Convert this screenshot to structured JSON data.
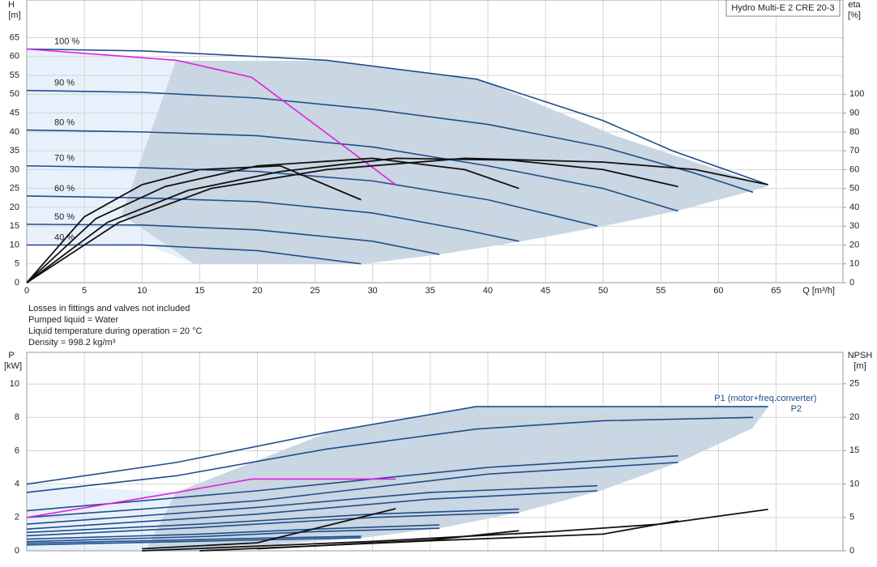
{
  "notes": [
    "Losses in fittings and valves not included",
    "Pumped liquid = Water",
    "Liquid temperature during operation = 20 °C",
    "Density = 998.2 kg/m³"
  ],
  "chart_data": [
    {
      "type": "line",
      "title": "Hydro Multi-E 2 CRE 20-3",
      "x_label": "Q [m³/h]",
      "y_label": "H",
      "y_unit": "[m]",
      "y2_label": "eta",
      "y2_unit": "[%]",
      "xlim": [
        0,
        70.8
      ],
      "ylim": [
        0,
        75
      ],
      "y2lim": [
        0,
        150
      ],
      "xticks": [
        0,
        5,
        10,
        15,
        20,
        25,
        30,
        35,
        40,
        45,
        50,
        55,
        60,
        65
      ],
      "yticks": [
        0,
        5,
        10,
        15,
        20,
        25,
        30,
        35,
        40,
        45,
        50,
        55,
        60,
        65
      ],
      "y2ticks": [
        0,
        10,
        20,
        30,
        40,
        50,
        60,
        70,
        80,
        90,
        100
      ],
      "grid": true,
      "series": [
        {
          "name": "100 %",
          "color": "#1f4e8c",
          "x": [
            0,
            10,
            20,
            26,
            39,
            50,
            56,
            64.3
          ],
          "values": [
            62,
            61.5,
            60,
            59,
            54,
            43,
            35,
            26
          ]
        },
        {
          "name": "90 %",
          "color": "#1f4e8c",
          "x": [
            0,
            10,
            20,
            30,
            40,
            50,
            58,
            63
          ],
          "values": [
            51,
            50.5,
            49,
            46,
            42,
            36,
            29,
            24
          ]
        },
        {
          "name": "80 %",
          "color": "#1f4e8c",
          "x": [
            0,
            10,
            20,
            30,
            40,
            50,
            56.5
          ],
          "values": [
            40.5,
            40,
            39,
            36,
            31,
            25,
            19
          ]
        },
        {
          "name": "70 %",
          "color": "#1f4e8c",
          "x": [
            0,
            10,
            20,
            30,
            40,
            49.5
          ],
          "values": [
            31,
            30.5,
            29.5,
            27,
            22,
            15
          ]
        },
        {
          "name": "60 %",
          "color": "#1f4e8c",
          "x": [
            0,
            10,
            20,
            30,
            38,
            42.7
          ],
          "values": [
            23,
            22.5,
            21.5,
            18.5,
            14,
            11
          ]
        },
        {
          "name": "50 %",
          "color": "#1f4e8c",
          "x": [
            0,
            10,
            20,
            30,
            35.8
          ],
          "values": [
            15.5,
            15.3,
            14,
            11,
            7.5
          ]
        },
        {
          "name": "40 %",
          "color": "#1f4e8c",
          "x": [
            0,
            10,
            20,
            29
          ],
          "values": [
            10,
            10,
            8.5,
            5
          ]
        },
        {
          "color": "#e020e0",
          "x": [
            0,
            13,
            19.5,
            32
          ],
          "values": [
            62,
            59,
            54.5,
            26
          ]
        },
        {
          "color": "#111111",
          "axis": "y2",
          "x": [
            0,
            8,
            16,
            26,
            38,
            50,
            58,
            64.3
          ],
          "values": [
            0,
            32,
            50,
            60,
            66,
            64,
            60,
            52
          ]
        },
        {
          "color": "#111111",
          "axis": "y2",
          "x": [
            0,
            7,
            14,
            22,
            32,
            42,
            50,
            56.5
          ],
          "values": [
            0,
            32,
            49,
            59,
            66,
            65,
            60,
            51
          ]
        },
        {
          "color": "#111111",
          "axis": "y2",
          "x": [
            0,
            6,
            12,
            20,
            30,
            38,
            42.7
          ],
          "values": [
            0,
            34,
            51,
            62,
            66,
            60,
            50
          ]
        },
        {
          "color": "#111111",
          "axis": "y2",
          "x": [
            0,
            5,
            10,
            15,
            22,
            29
          ],
          "values": [
            0,
            35,
            52,
            60,
            62,
            44
          ]
        }
      ]
    },
    {
      "type": "line",
      "y_label": "P",
      "y_unit": "[kW]",
      "y2_label": "NPSH",
      "y2_unit": "[m]",
      "xlim": [
        0,
        70.8
      ],
      "ylim": [
        0,
        11.9
      ],
      "y2lim": [
        0,
        29.7
      ],
      "yticks": [
        0,
        2,
        4,
        6,
        8,
        10
      ],
      "y2ticks": [
        0,
        5,
        10,
        15,
        20,
        25
      ],
      "grid": true,
      "series": [
        {
          "name": "P1 (motor+freq.converter)",
          "color": "#1f4e8c",
          "x": [
            0,
            13,
            26,
            39,
            64.3
          ],
          "values": [
            4.0,
            5.3,
            7.1,
            8.65,
            8.65
          ]
        },
        {
          "name": "P2",
          "color": "#1f4e8c",
          "x": [
            0,
            13,
            26,
            39,
            50,
            63
          ],
          "values": [
            3.5,
            4.5,
            6.1,
            7.3,
            7.8,
            8.0
          ]
        },
        {
          "color": "#1f4e8c",
          "x": [
            0,
            20,
            40,
            56.5
          ],
          "values": [
            2.4,
            3.6,
            5.0,
            5.7
          ]
        },
        {
          "color": "#1f4e8c",
          "x": [
            0,
            20,
            40,
            56.5
          ],
          "values": [
            2.0,
            3.0,
            4.6,
            5.3
          ]
        },
        {
          "color": "#1f4e8c",
          "x": [
            0,
            20,
            35,
            49.5
          ],
          "values": [
            1.6,
            2.6,
            3.5,
            3.9
          ]
        },
        {
          "color": "#1f4e8c",
          "x": [
            0,
            20,
            35,
            49.5
          ],
          "values": [
            1.3,
            2.2,
            3.1,
            3.6
          ]
        },
        {
          "color": "#1f4e8c",
          "x": [
            0,
            15,
            30,
            42.7
          ],
          "values": [
            1.1,
            1.6,
            2.2,
            2.5
          ]
        },
        {
          "color": "#1f4e8c",
          "x": [
            0,
            15,
            30,
            42.7
          ],
          "values": [
            0.9,
            1.4,
            2.0,
            2.3
          ]
        },
        {
          "color": "#1f4e8c",
          "x": [
            0,
            15,
            25,
            35.8
          ],
          "values": [
            0.7,
            1.0,
            1.3,
            1.55
          ]
        },
        {
          "color": "#1f4e8c",
          "x": [
            0,
            15,
            25,
            35.8
          ],
          "values": [
            0.55,
            0.85,
            1.15,
            1.35
          ]
        },
        {
          "color": "#1f4e8c",
          "x": [
            0,
            10,
            20,
            29
          ],
          "values": [
            0.45,
            0.6,
            0.75,
            0.87
          ]
        },
        {
          "color": "#1f4e8c",
          "x": [
            0,
            10,
            20,
            29
          ],
          "values": [
            0.35,
            0.5,
            0.65,
            0.78
          ]
        },
        {
          "color": "#e020e0",
          "x": [
            0,
            13,
            19.5,
            32
          ],
          "values": [
            2.0,
            3.5,
            4.3,
            4.3
          ]
        },
        {
          "color": "#111111",
          "axis": "y2",
          "x": [
            10,
            30,
            45,
            55,
            64.3
          ],
          "values": [
            0,
            1.4,
            2.8,
            4.0,
            6.2
          ]
        },
        {
          "color": "#111111",
          "axis": "y2",
          "x": [
            15,
            35,
            50,
            56.5
          ],
          "values": [
            0,
            1.5,
            2.5,
            4.5
          ]
        },
        {
          "color": "#111111",
          "axis": "y2",
          "x": [
            20,
            35,
            42.7
          ],
          "values": [
            0.3,
            1.6,
            3.0
          ]
        },
        {
          "color": "#111111",
          "axis": "y2",
          "x": [
            10,
            20,
            32
          ],
          "values": [
            0.3,
            1.2,
            6.3
          ]
        }
      ]
    }
  ]
}
